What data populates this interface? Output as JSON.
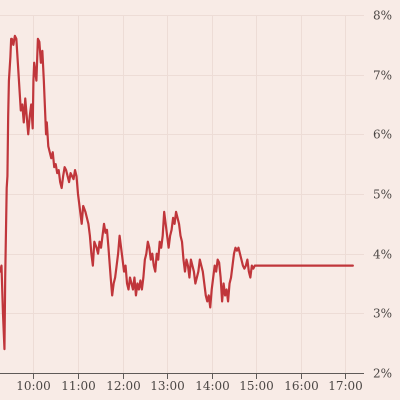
{
  "colors": {
    "background": "#f8ebe6",
    "line": "#c0363b",
    "grid": "#eddcd6",
    "axis": "#5f5a58",
    "label": "#4b4644"
  },
  "chart_data": {
    "type": "line",
    "title": "",
    "xlabel": "",
    "ylabel": "",
    "grid": true,
    "y_axis_position": "right",
    "x_tick_labels": [
      "10:00",
      "11:00",
      "12:00",
      "13:00",
      "14:00",
      "15:00",
      "16:00",
      "17:00"
    ],
    "y_tick_labels": [
      "2%",
      "3%",
      "4%",
      "5%",
      "6%",
      "7%",
      "8%"
    ],
    "xlim": [
      "09:15",
      "17:25"
    ],
    "ylim": [
      2,
      8
    ],
    "series": [
      {
        "x": [
          "09:15",
          "09:17",
          "09:19",
          "09:21",
          "09:22",
          "09:24",
          "09:25",
          "09:26",
          "09:27",
          "09:29",
          "09:30",
          "09:31",
          "09:33",
          "09:35",
          "09:37",
          "09:39",
          "09:41",
          "09:43",
          "09:45",
          "09:47",
          "09:49",
          "09:51",
          "09:53",
          "09:55",
          "09:57",
          "09:59",
          "10:00",
          "10:01",
          "10:02",
          "10:04",
          "10:06",
          "10:08",
          "10:10",
          "10:12",
          "10:14",
          "10:15",
          "10:17",
          "10:18",
          "10:20",
          "10:22",
          "10:24",
          "10:26",
          "10:28",
          "10:30",
          "10:32",
          "10:34",
          "10:36",
          "10:38",
          "10:40",
          "10:42",
          "10:44",
          "10:46",
          "10:48",
          "10:50",
          "10:52",
          "10:54",
          "10:56",
          "10:58",
          "11:00",
          "11:02",
          "11:05",
          "11:07",
          "11:10",
          "11:12",
          "11:14",
          "11:16",
          "11:18",
          "11:20",
          "11:22",
          "11:25",
          "11:27",
          "11:29",
          "11:31",
          "11:33",
          "11:35",
          "11:37",
          "11:39",
          "11:41",
          "11:44",
          "11:46",
          "11:48",
          "11:50",
          "11:52",
          "11:54",
          "11:56",
          "11:58",
          "12:00",
          "12:02",
          "12:04",
          "12:06",
          "12:08",
          "12:10",
          "12:12",
          "12:14",
          "12:16",
          "12:18",
          "12:20",
          "12:22",
          "12:24",
          "12:26",
          "12:28",
          "12:30",
          "12:32",
          "12:34",
          "12:36",
          "12:38",
          "12:40",
          "12:42",
          "12:44",
          "12:46",
          "12:48",
          "12:50",
          "12:52",
          "12:54",
          "12:56",
          "12:58",
          "13:00",
          "13:02",
          "13:04",
          "13:06",
          "13:08",
          "13:10",
          "13:12",
          "13:14",
          "13:16",
          "13:18",
          "13:20",
          "13:22",
          "13:24",
          "13:26",
          "13:28",
          "13:30",
          "13:32",
          "13:34",
          "13:36",
          "13:38",
          "13:40",
          "13:42",
          "13:44",
          "13:46",
          "13:48",
          "13:50",
          "13:52",
          "13:54",
          "13:56",
          "13:58",
          "14:00",
          "14:02",
          "14:04",
          "14:06",
          "14:08",
          "14:10",
          "14:12",
          "14:14",
          "14:16",
          "14:18",
          "14:20",
          "14:22",
          "14:24",
          "14:26",
          "14:28",
          "14:30",
          "14:32",
          "14:34",
          "14:36",
          "14:38",
          "14:40",
          "14:42",
          "14:44",
          "14:46",
          "14:48",
          "14:50",
          "14:52",
          "14:54",
          "14:56",
          "14:58",
          "15:00",
          "15:02",
          "15:04",
          "15:06",
          "15:08",
          "15:10",
          "15:12",
          "15:14",
          "15:16",
          "15:18",
          "15:20",
          "15:22",
          "15:24",
          "15:26",
          "15:28",
          "15:30",
          "15:32",
          "15:34",
          "15:36",
          "15:38",
          "15:40",
          "15:42",
          "15:44",
          "15:46",
          "15:48",
          "15:50",
          "15:52",
          "15:54",
          "15:56",
          "15:58",
          "16:00",
          "16:02",
          "16:04",
          "16:06",
          "16:08",
          "16:10",
          "16:12",
          "16:14",
          "16:16",
          "16:18",
          "16:20",
          "16:22",
          "16:24",
          "16:26",
          "16:28",
          "16:30",
          "16:32",
          "16:34",
          "16:36",
          "16:38",
          "16:40",
          "16:42",
          "16:44",
          "16:46",
          "16:48",
          "16:50",
          "16:52",
          "16:54",
          "16:56",
          "16:58",
          "17:00",
          "17:02",
          "17:04",
          "17:06",
          "17:08",
          "17:10"
        ],
        "y": [
          3.7,
          3.8,
          3.0,
          2.4,
          3.6,
          5.1,
          5.3,
          6.3,
          6.9,
          7.3,
          7.6,
          7.6,
          7.5,
          7.65,
          7.6,
          7.2,
          6.8,
          6.4,
          6.5,
          6.2,
          6.6,
          6.3,
          6.0,
          6.3,
          6.5,
          6.1,
          6.9,
          7.2,
          7.1,
          6.9,
          7.6,
          7.55,
          7.2,
          7.4,
          6.9,
          6.6,
          6.0,
          6.2,
          5.8,
          5.7,
          5.6,
          5.7,
          5.45,
          5.5,
          5.35,
          5.4,
          5.2,
          5.1,
          5.3,
          5.45,
          5.4,
          5.3,
          5.2,
          5.35,
          5.3,
          5.25,
          5.4,
          5.3,
          5.0,
          4.8,
          4.5,
          4.8,
          4.7,
          4.6,
          4.5,
          4.3,
          4.0,
          3.8,
          4.2,
          4.1,
          4.0,
          4.2,
          4.1,
          4.3,
          4.5,
          4.35,
          4.4,
          4.1,
          3.6,
          3.3,
          3.5,
          3.6,
          3.8,
          4.0,
          4.3,
          4.1,
          3.9,
          3.7,
          3.8,
          3.5,
          3.4,
          3.6,
          3.5,
          3.4,
          3.6,
          3.3,
          3.5,
          3.4,
          3.55,
          3.4,
          3.6,
          3.9,
          4.0,
          4.2,
          4.1,
          3.9,
          4.0,
          3.8,
          3.7,
          4.0,
          3.9,
          4.2,
          4.1,
          4.3,
          4.7,
          4.5,
          4.3,
          4.1,
          4.3,
          4.4,
          4.6,
          4.5,
          4.7,
          4.6,
          4.5,
          4.3,
          4.2,
          3.9,
          3.7,
          3.9,
          3.8,
          3.6,
          3.9,
          3.8,
          3.7,
          3.5,
          3.6,
          3.7,
          3.9,
          3.8,
          3.7,
          3.5,
          3.3,
          3.2,
          3.3,
          3.1,
          3.4,
          3.6,
          3.8,
          3.7,
          3.9,
          3.85,
          3.6,
          3.2,
          3.5,
          3.3,
          3.4,
          3.2,
          3.5,
          3.6,
          3.8,
          4.0,
          4.1,
          4.05,
          4.1,
          4.0,
          3.9,
          3.8,
          3.75,
          3.8,
          3.9,
          3.7,
          3.6,
          3.8,
          3.75,
          3.8,
          3.8,
          3.8,
          3.8,
          3.8,
          3.8,
          3.8,
          3.8,
          3.8,
          3.8,
          3.8,
          3.8,
          3.8,
          3.8,
          3.8,
          3.8,
          3.8,
          3.8,
          3.8,
          3.8,
          3.8,
          3.8,
          3.8,
          3.8,
          3.8,
          3.8,
          3.8,
          3.8,
          3.8,
          3.8,
          3.8,
          3.8,
          3.8,
          3.8,
          3.8,
          3.8,
          3.8,
          3.8,
          3.8,
          3.8,
          3.8,
          3.8,
          3.8,
          3.8,
          3.8,
          3.8,
          3.8,
          3.8,
          3.8,
          3.8,
          3.8,
          3.8,
          3.8,
          3.8,
          3.8,
          3.8,
          3.8,
          3.8,
          3.8,
          3.8,
          3.8,
          3.8,
          3.8,
          3.8,
          3.8,
          3.8,
          3.8
        ]
      }
    ]
  }
}
